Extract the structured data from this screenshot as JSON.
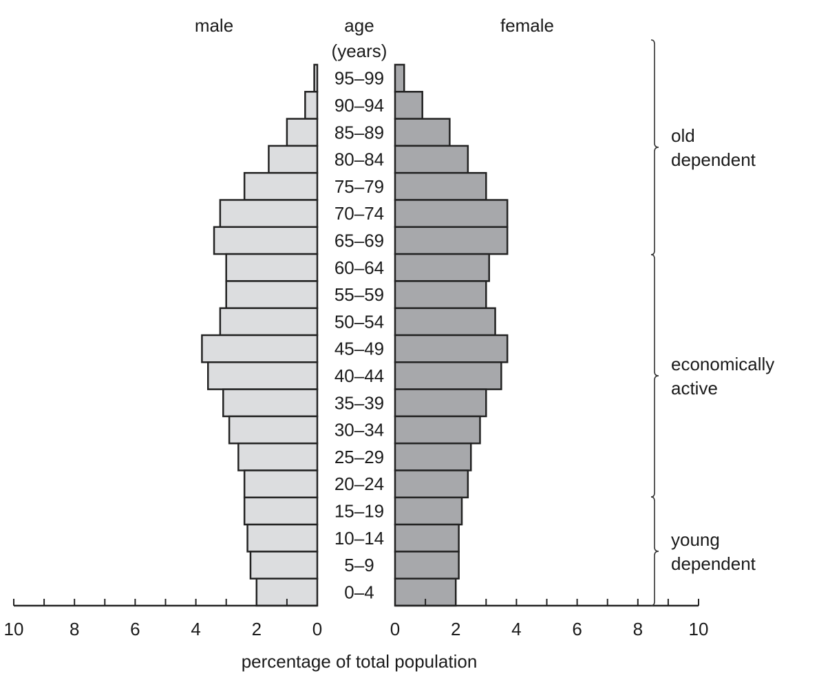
{
  "chart_data": {
    "type": "bar",
    "subtype": "population-pyramid",
    "title": "",
    "header_labels": {
      "male": "male",
      "age": "age",
      "age_unit": "(years)",
      "female": "female"
    },
    "xlabel": "percentage of total population",
    "xlim": [
      0,
      10
    ],
    "x_ticks": [
      0,
      2,
      4,
      6,
      8,
      10
    ],
    "grid": false,
    "colors": {
      "male": "#dcdddf",
      "female": "#a7a8ab",
      "outline": "#222222"
    },
    "categories": [
      "95–99",
      "90–94",
      "85–89",
      "80–84",
      "75–79",
      "70–74",
      "65–69",
      "60–64",
      "55–59",
      "50–54",
      "45–49",
      "40–44",
      "35–39",
      "30–34",
      "25–29",
      "20–24",
      "15–19",
      "10–14",
      "5–9",
      "0–4"
    ],
    "series": [
      {
        "name": "male",
        "values": [
          0.1,
          0.4,
          1.0,
          1.6,
          2.4,
          3.2,
          3.4,
          3.0,
          3.0,
          3.2,
          3.8,
          3.6,
          3.1,
          2.9,
          2.6,
          2.4,
          2.4,
          2.3,
          2.2,
          2.0
        ]
      },
      {
        "name": "female",
        "values": [
          0.3,
          0.9,
          1.8,
          2.4,
          3.0,
          3.7,
          3.7,
          3.1,
          3.0,
          3.3,
          3.7,
          3.5,
          3.0,
          2.8,
          2.5,
          2.4,
          2.2,
          2.1,
          2.1,
          2.0
        ]
      }
    ],
    "groups": [
      {
        "label_lines": [
          "old",
          "dependent"
        ],
        "from": "95–99",
        "to": "65–69"
      },
      {
        "label_lines": [
          "economically",
          "active"
        ],
        "from": "60–64",
        "to": "20–24"
      },
      {
        "label_lines": [
          "young",
          "dependent"
        ],
        "from": "15–19",
        "to": "0–4"
      }
    ]
  }
}
